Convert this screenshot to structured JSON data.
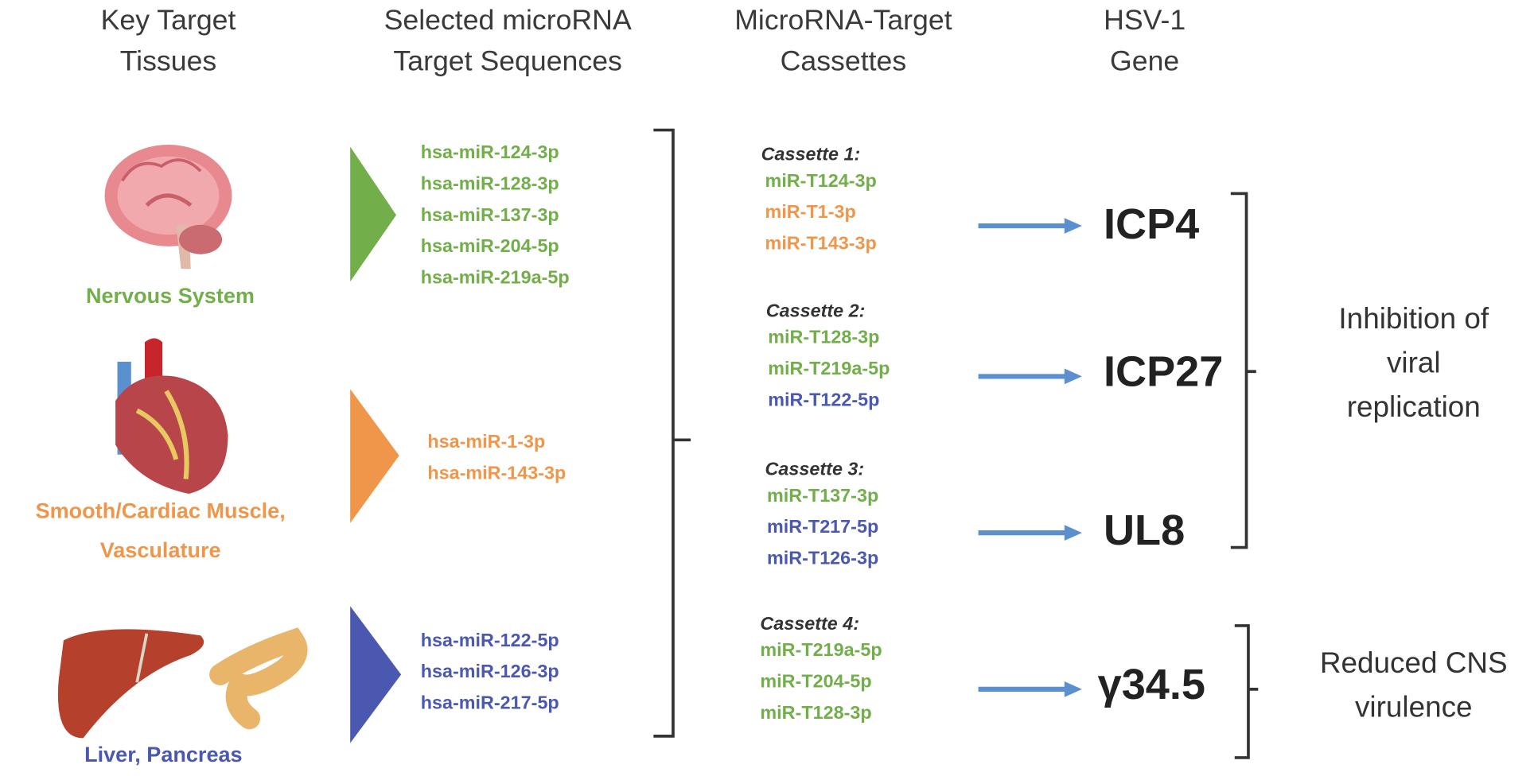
{
  "headers": {
    "tissues": [
      "Key Target",
      "Tissues"
    ],
    "sequences": [
      "Selected microRNA",
      "Target Sequences"
    ],
    "cassettes": [
      "MicroRNA-Target",
      "Cassettes"
    ],
    "gene": [
      "HSV-1",
      "Gene"
    ]
  },
  "tissues": [
    {
      "label": "Nervous System",
      "icon": "brain-icon"
    },
    {
      "label_lines": [
        "Smooth/Cardiac Muscle,",
        "Vasculature"
      ],
      "icon": "heart-icon"
    },
    {
      "label": "Liver, Pancreas",
      "icon": "liver-pancreas-icon"
    }
  ],
  "sequences": {
    "green": [
      "hsa-miR-124-3p",
      "hsa-miR-128-3p",
      "hsa-miR-137-3p",
      "hsa-miR-204-5p",
      "hsa-miR-219a-5p"
    ],
    "orange": [
      "hsa-miR-1-3p",
      "hsa-miR-143-3p"
    ],
    "blue": [
      "hsa-miR-122-5p",
      "hsa-miR-126-3p",
      "hsa-miR-217-5p"
    ]
  },
  "cassettes": [
    {
      "title": "Cassette 1:",
      "items": [
        "miR-T124-3p",
        "miR-T1-3p",
        "miR-T143-3p"
      ],
      "colors": [
        "green",
        "orange",
        "orange"
      ],
      "gene": "ICP4"
    },
    {
      "title": "Cassette 2:",
      "items": [
        "miR-T128-3p",
        "miR-T219a-5p",
        "miR-T122-5p"
      ],
      "colors": [
        "green",
        "green",
        "blue"
      ],
      "gene": "ICP27"
    },
    {
      "title": "Cassette 3:",
      "items": [
        "miR-T137-3p",
        "miR-T217-5p",
        "miR-T126-3p"
      ],
      "colors": [
        "green",
        "blue",
        "blue"
      ],
      "gene": "UL8"
    },
    {
      "title": "Cassette 4:",
      "items": [
        "miR-T219a-5p",
        "miR-T204-5p",
        "miR-T128-3p"
      ],
      "colors": [
        "green",
        "green",
        "green"
      ],
      "gene": "γ34.5"
    }
  ],
  "effects": {
    "inhibition": [
      "Inhibition of",
      "viral",
      "replication"
    ],
    "reduced": [
      "Reduced CNS",
      "virulence"
    ]
  },
  "colors": {
    "green": "#72ae4a",
    "orange": "#f0964a",
    "blue": "#4a58b0",
    "arrow": "#5b8fd0"
  }
}
